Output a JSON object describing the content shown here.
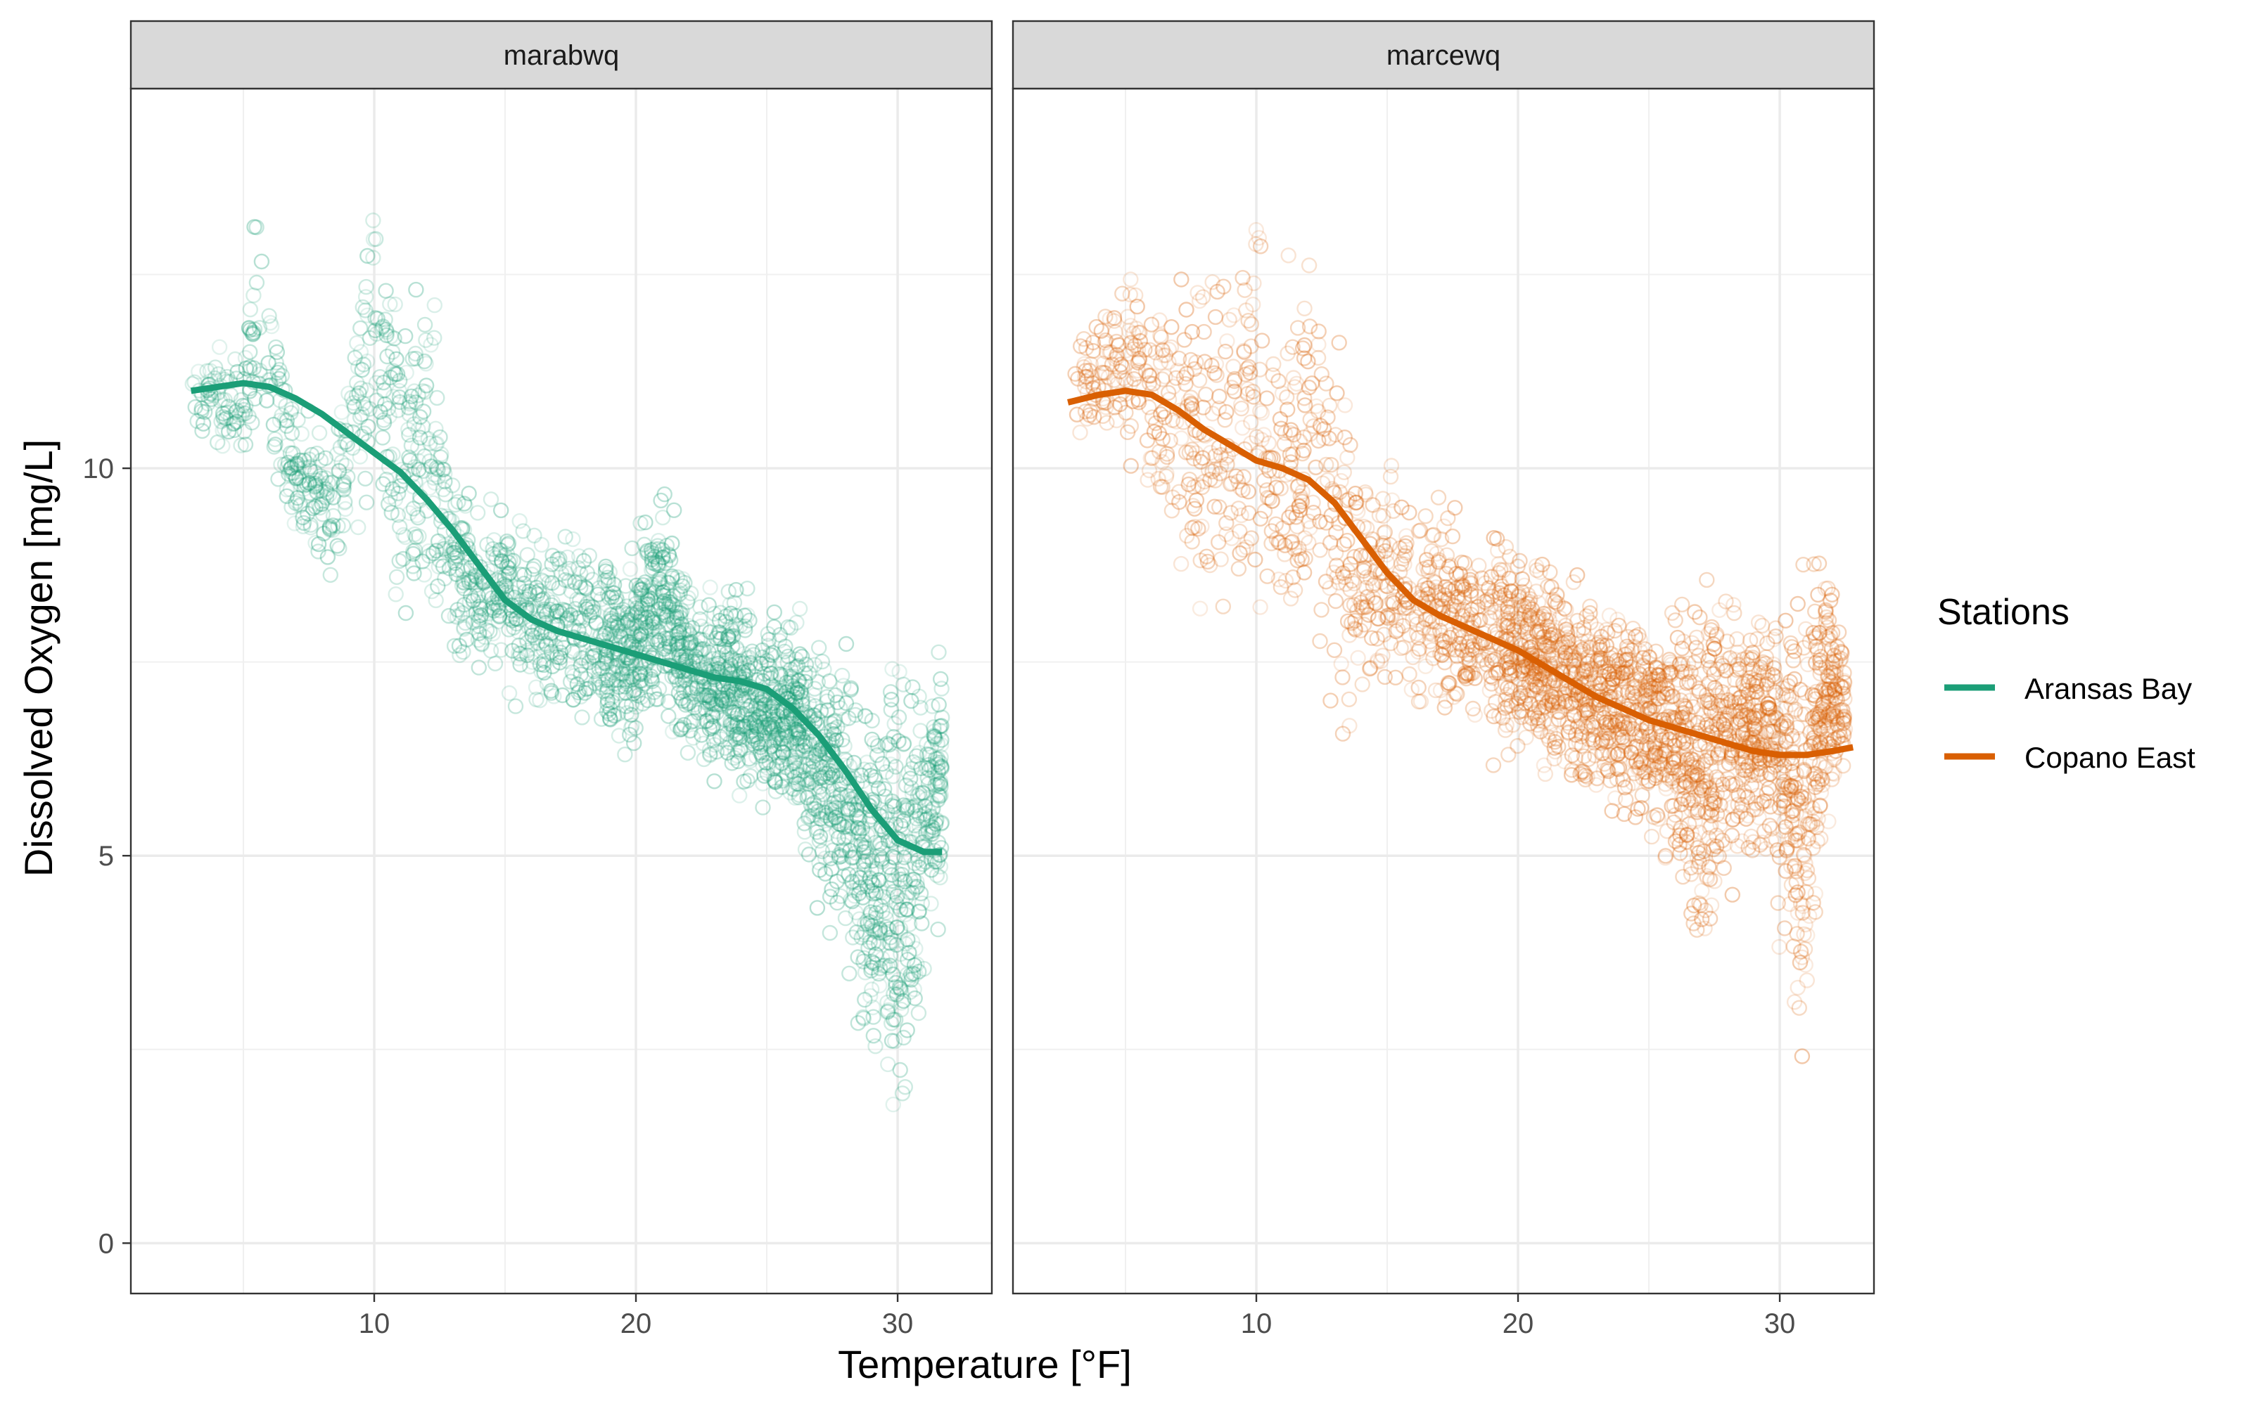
{
  "chart_data": {
    "type": "scatter",
    "xlabel": "Temperature [°F]",
    "ylabel": "Dissolved Oxygen [mg/L]",
    "xlim": [
      0.7,
      33.6
    ],
    "ylim": [
      -0.65,
      14.9
    ],
    "x_ticks": [
      10,
      20,
      30
    ],
    "y_ticks": [
      0,
      5,
      10
    ],
    "grid": true,
    "legend": {
      "title": "Stations",
      "position": "right",
      "entries": [
        {
          "label": "Aransas Bay",
          "color": "#1b9e77"
        },
        {
          "label": "Copano East",
          "color": "#d95f02"
        }
      ]
    },
    "panels": [
      {
        "strip_label": "marabwq",
        "station": "Aransas Bay",
        "color": "#1b9e77",
        "smooth": {
          "x": [
            3.0,
            4.0,
            5.0,
            6.0,
            7.0,
            8.0,
            9.0,
            10.0,
            11.0,
            12.0,
            13.0,
            14.0,
            15.0,
            16.0,
            17.0,
            18.0,
            19.0,
            20.0,
            21.0,
            22.0,
            23.0,
            24.0,
            25.0,
            26.0,
            27.0,
            28.0,
            29.0,
            30.0,
            31.0,
            31.7
          ],
          "y": [
            11.0,
            11.05,
            11.1,
            11.05,
            10.9,
            10.7,
            10.45,
            10.2,
            9.95,
            9.6,
            9.2,
            8.75,
            8.3,
            8.05,
            7.9,
            7.8,
            7.7,
            7.6,
            7.5,
            7.4,
            7.3,
            7.25,
            7.15,
            6.9,
            6.55,
            6.1,
            5.6,
            5.2,
            5.05,
            5.05
          ]
        },
        "cloud": [
          [
            3.0,
            11.1,
            0.3
          ],
          [
            4.0,
            10.9,
            0.4
          ],
          [
            5.0,
            10.7,
            0.5
          ],
          [
            5.5,
            11.8,
            1.2
          ],
          [
            7.0,
            9.9,
            0.5
          ],
          [
            8.5,
            9.5,
            0.6
          ],
          [
            10.0,
            11.5,
            1.4
          ],
          [
            11.0,
            10.0,
            1.5
          ],
          [
            12.0,
            10.3,
            1.4
          ],
          [
            13.0,
            9.0,
            0.9
          ],
          [
            14.0,
            8.4,
            0.7
          ],
          [
            15.0,
            8.4,
            0.8
          ],
          [
            16.0,
            8.2,
            0.9
          ],
          [
            17.0,
            8.0,
            0.8
          ],
          [
            18.0,
            7.8,
            0.8
          ],
          [
            19.0,
            7.7,
            0.8
          ],
          [
            20.0,
            7.7,
            0.9
          ],
          [
            21.0,
            8.4,
            1.0
          ],
          [
            22.0,
            7.4,
            0.8
          ],
          [
            23.0,
            7.2,
            0.8
          ],
          [
            24.0,
            7.1,
            0.9
          ],
          [
            25.0,
            6.9,
            0.8
          ],
          [
            26.0,
            6.8,
            0.9
          ],
          [
            27.0,
            6.2,
            1.0
          ],
          [
            28.0,
            5.6,
            1.3
          ],
          [
            29.0,
            4.8,
            1.6
          ],
          [
            30.0,
            4.3,
            2.3
          ],
          [
            31.0,
            5.3,
            1.3
          ],
          [
            31.7,
            6.0,
            1.0
          ]
        ]
      },
      {
        "strip_label": "marcewq",
        "station": "Copano East",
        "color": "#d95f02",
        "smooth": {
          "x": [
            2.8,
            4.0,
            5.0,
            6.0,
            7.0,
            8.0,
            9.0,
            10.0,
            11.0,
            12.0,
            13.0,
            14.0,
            15.0,
            16.0,
            17.0,
            18.0,
            19.0,
            20.0,
            21.0,
            22.0,
            23.0,
            24.0,
            25.0,
            26.0,
            27.0,
            28.0,
            29.0,
            30.0,
            31.0,
            32.0,
            32.8
          ],
          "y": [
            10.85,
            10.95,
            11.0,
            10.95,
            10.75,
            10.5,
            10.3,
            10.1,
            10.0,
            9.85,
            9.55,
            9.1,
            8.65,
            8.3,
            8.1,
            7.95,
            7.8,
            7.65,
            7.45,
            7.25,
            7.05,
            6.9,
            6.75,
            6.65,
            6.55,
            6.45,
            6.35,
            6.3,
            6.3,
            6.35,
            6.4
          ]
        },
        "cloud": [
          [
            3.0,
            10.9,
            0.4
          ],
          [
            5.0,
            11.4,
            0.8
          ],
          [
            7.0,
            10.5,
            1.3
          ],
          [
            9.0,
            10.3,
            1.6
          ],
          [
            10.0,
            10.8,
            1.8
          ],
          [
            11.0,
            9.8,
            1.6
          ],
          [
            12.0,
            10.4,
            1.7
          ],
          [
            13.0,
            9.3,
            1.5
          ],
          [
            14.0,
            8.6,
            1.2
          ],
          [
            15.0,
            8.6,
            1.0
          ],
          [
            16.0,
            8.3,
            0.9
          ],
          [
            17.0,
            8.2,
            0.9
          ],
          [
            18.0,
            7.9,
            0.8
          ],
          [
            19.0,
            7.8,
            0.9
          ],
          [
            20.0,
            7.7,
            0.9
          ],
          [
            21.0,
            7.4,
            0.9
          ],
          [
            22.0,
            7.2,
            0.8
          ],
          [
            23.0,
            7.0,
            0.9
          ],
          [
            24.0,
            6.8,
            0.9
          ],
          [
            25.0,
            6.7,
            1.0
          ],
          [
            26.0,
            6.6,
            1.1
          ],
          [
            27.0,
            6.0,
            1.6
          ],
          [
            28.0,
            6.6,
            1.3
          ],
          [
            29.0,
            6.5,
            1.0
          ],
          [
            30.0,
            6.3,
            1.3
          ],
          [
            30.8,
            5.3,
            2.4
          ],
          [
            31.5,
            6.9,
            1.3
          ],
          [
            32.5,
            7.1,
            0.6
          ]
        ]
      }
    ]
  }
}
